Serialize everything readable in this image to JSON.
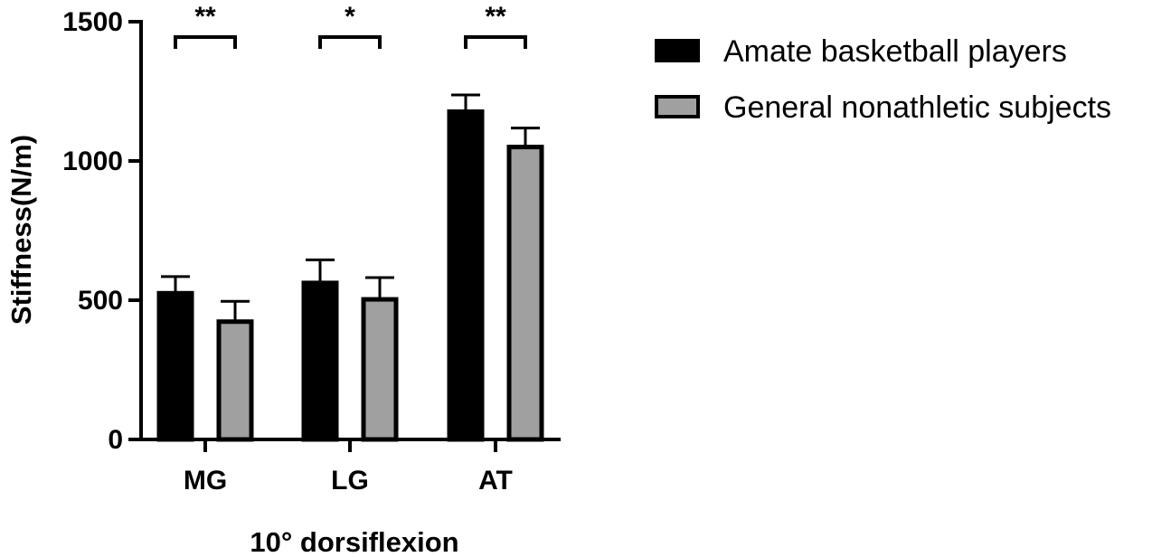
{
  "chart_data": {
    "type": "bar",
    "categories": [
      "MG",
      "LG",
      "AT"
    ],
    "series": [
      {
        "name": "Amate basketball players",
        "values": [
          525,
          562,
          1177
        ],
        "errors": [
          60,
          83,
          60
        ],
        "color": "#000000"
      },
      {
        "name": "General nonathletic subjects",
        "values": [
          423,
          503,
          1050
        ],
        "errors": [
          73,
          78,
          68
        ],
        "color": "#a0a0a0"
      }
    ],
    "significance": [
      "**",
      "*",
      "**"
    ],
    "title": "",
    "xlabel": "10° dorsiflexion",
    "ylabel": "Stiffness(N/m)",
    "ylim": [
      0,
      1500
    ],
    "yticks": [
      0,
      500,
      1000,
      1500
    ],
    "grid": false,
    "legend_position": "top-right"
  }
}
